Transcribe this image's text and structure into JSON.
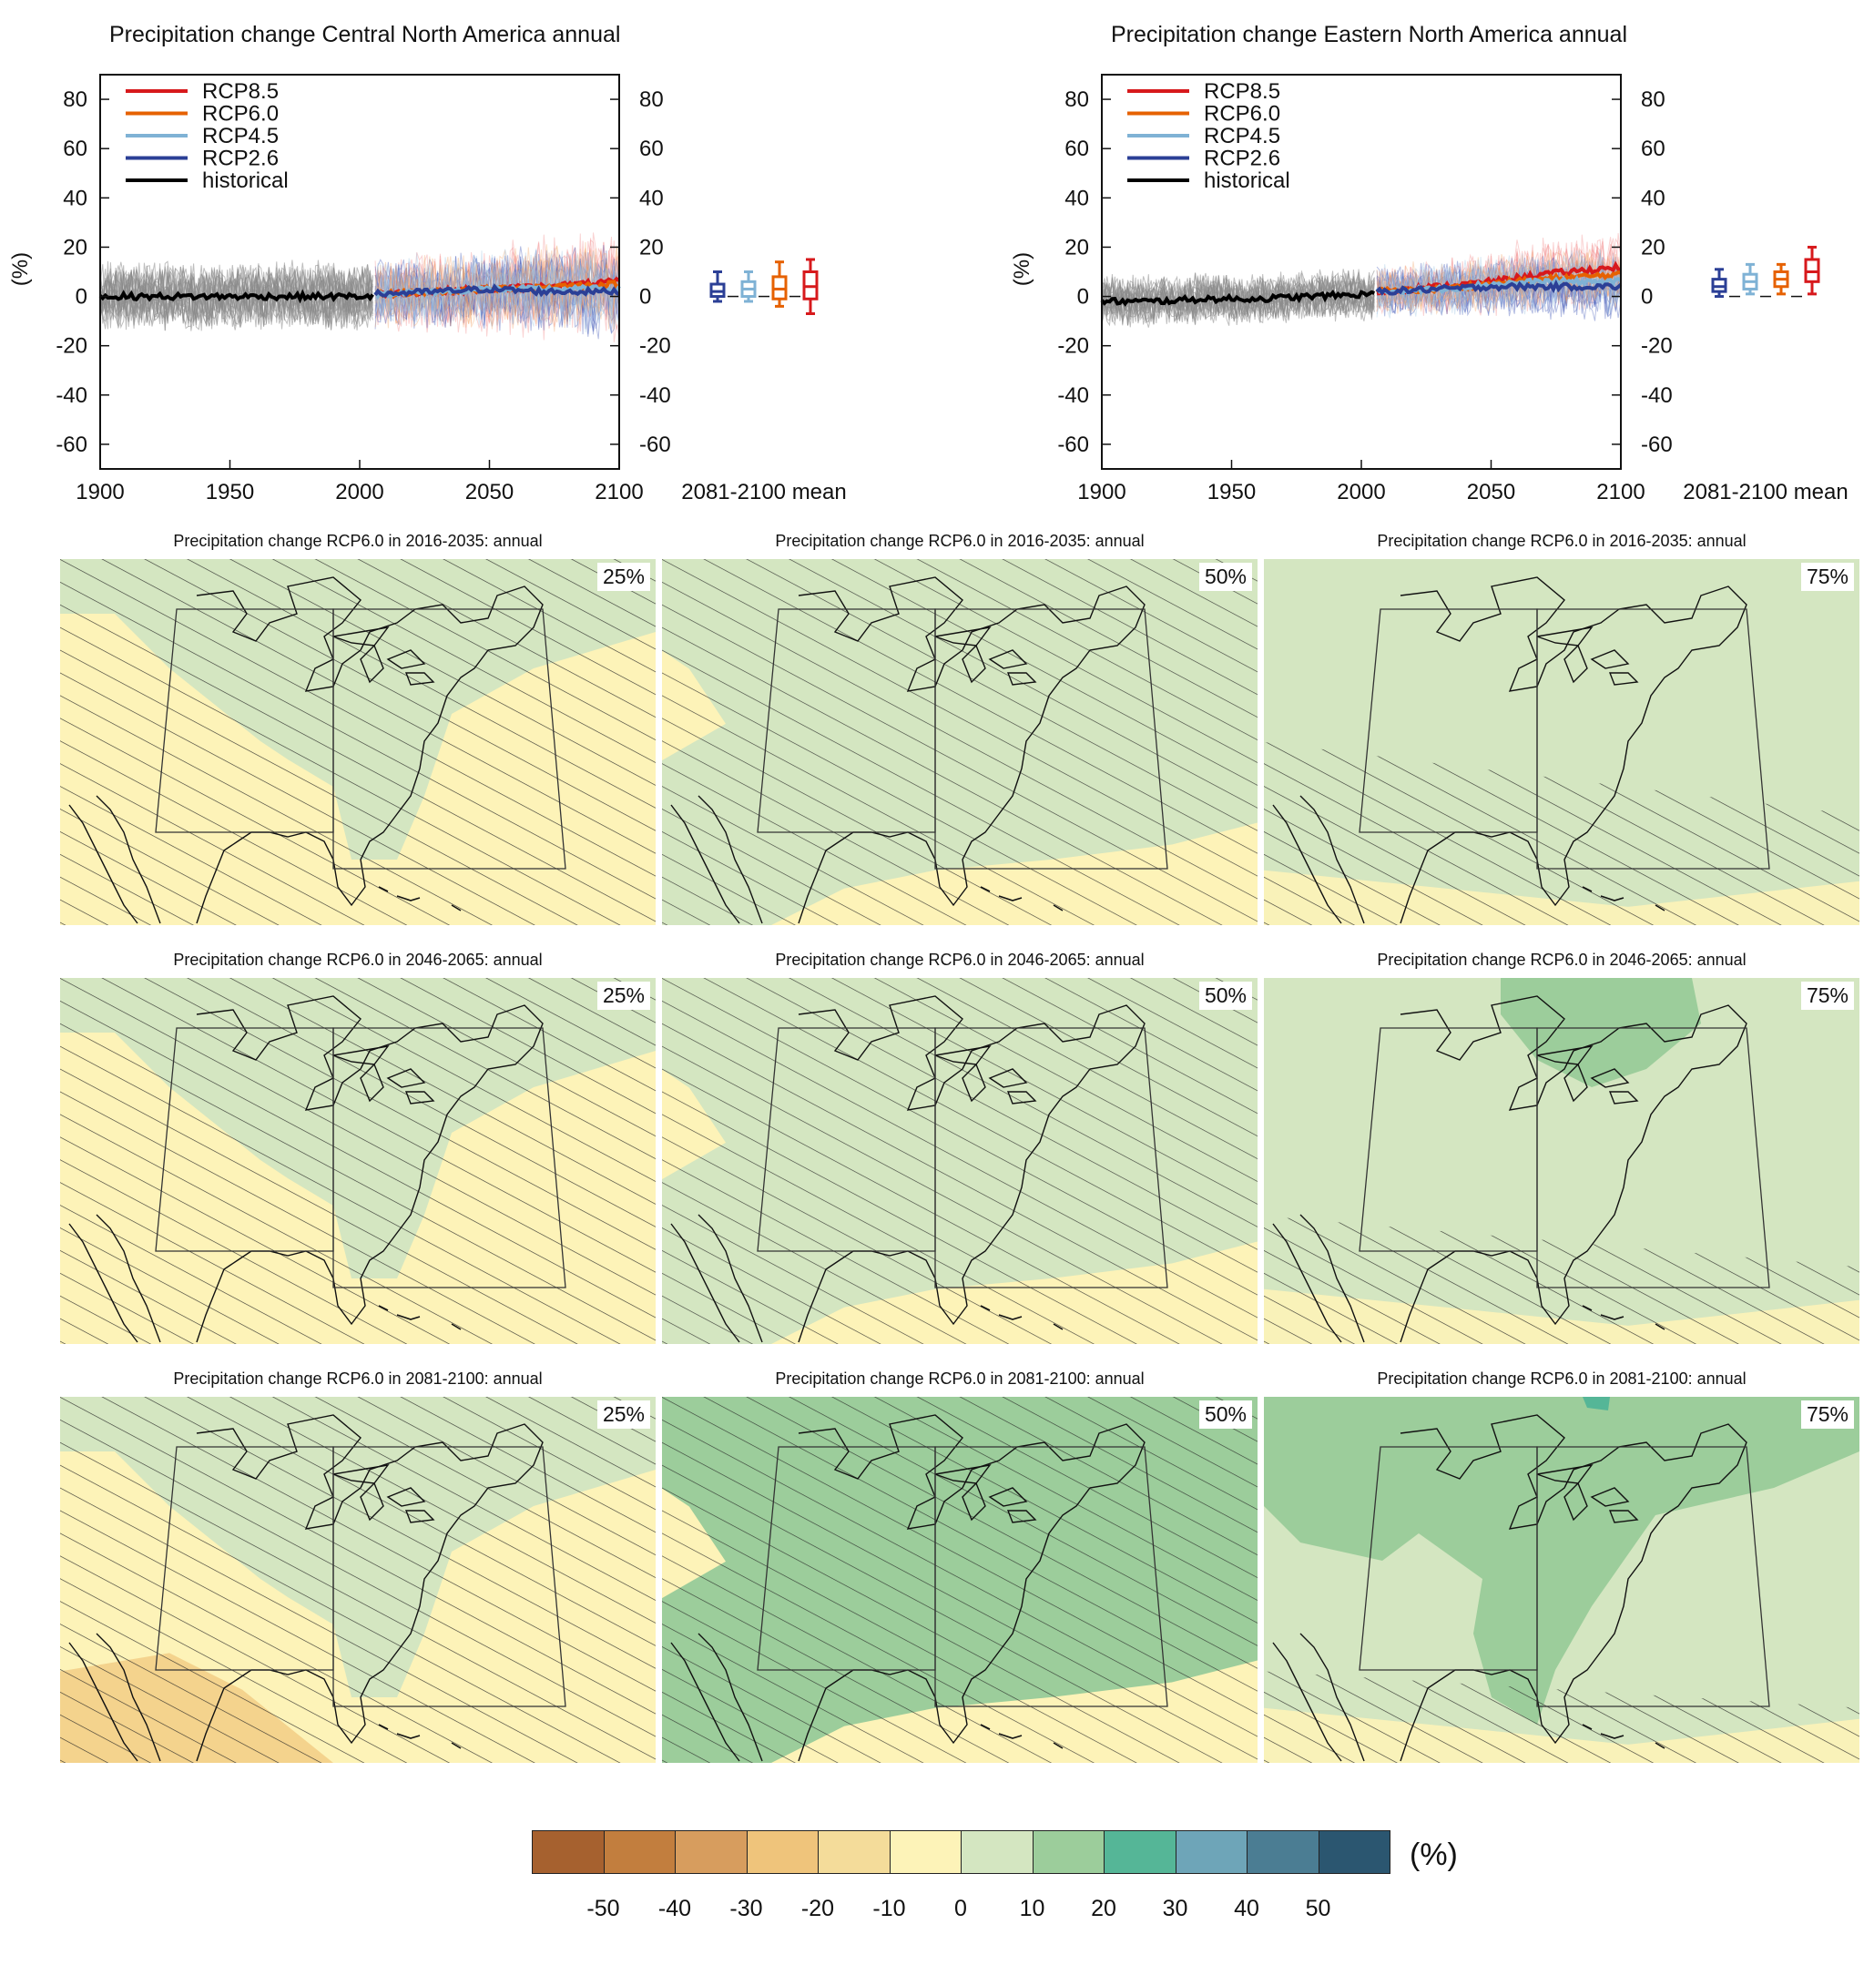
{
  "timeseries": [
    {
      "title": "Precipitation change Central North America annual",
      "ylabel": "(%)",
      "x_ticks": [
        "1900",
        "1950",
        "2000",
        "2050",
        "2100"
      ],
      "y_ticks": [
        "80",
        "60",
        "40",
        "20",
        "0",
        "-20",
        "-40",
        "-60"
      ],
      "mean_label": "2081-2100 mean"
    },
    {
      "title": "Precipitation change Eastern North America annual",
      "ylabel": "(%)",
      "x_ticks": [
        "1900",
        "1950",
        "2000",
        "2050",
        "2100"
      ],
      "y_ticks": [
        "80",
        "60",
        "40",
        "20",
        "0",
        "-20",
        "-40",
        "-60"
      ],
      "mean_label": "2081-2100 mean"
    }
  ],
  "legend": [
    {
      "label": "RCP8.5",
      "color": "#d7191c"
    },
    {
      "label": "RCP6.0",
      "color": "#e66101"
    },
    {
      "label": "RCP4.5",
      "color": "#7fb2d5"
    },
    {
      "label": "RCP2.6",
      "color": "#2b3f96"
    },
    {
      "label": "historical",
      "color": "#000000"
    }
  ],
  "maps": {
    "rows": [
      {
        "title": "Precipitation change RCP6.0 in 2016-2035: annual"
      },
      {
        "title": "Precipitation change RCP6.0 in 2046-2065: annual"
      },
      {
        "title": "Precipitation change RCP6.0 in 2081-2100: annual"
      }
    ],
    "percentiles": [
      "25%",
      "50%",
      "75%"
    ]
  },
  "colorbar": {
    "unit": "(%)",
    "labels": [
      "-50",
      "-40",
      "-30",
      "-20",
      "-10",
      "0",
      "10",
      "20",
      "30",
      "40",
      "50"
    ],
    "colors": [
      "#a6612f",
      "#c27e3e",
      "#d79d5e",
      "#efc47b",
      "#f4dc9a",
      "#fdf3b8",
      "#d4e6c1",
      "#9ccd9b",
      "#55b697",
      "#6ea5b8",
      "#4b7d93",
      "#2b5670"
    ]
  },
  "chart_data": [
    {
      "type": "line",
      "title": "Precipitation change Central North America annual",
      "xlabel": "",
      "ylabel": "(%)",
      "xlim": [
        1900,
        2100
      ],
      "ylim": [
        -70,
        90
      ],
      "grid": false,
      "legend": "top-left",
      "series": [
        {
          "name": "historical",
          "x": [
            1900,
            1920,
            1940,
            1960,
            1980,
            2005
          ],
          "values": [
            0,
            0,
            0,
            0,
            0,
            0
          ]
        },
        {
          "name": "RCP2.6",
          "x": [
            2006,
            2030,
            2050,
            2070,
            2100
          ],
          "values": [
            1,
            2,
            3,
            2,
            2
          ]
        },
        {
          "name": "RCP4.5",
          "x": [
            2006,
            2030,
            2050,
            2070,
            2100
          ],
          "values": [
            1,
            2,
            3,
            3,
            3
          ]
        },
        {
          "name": "RCP6.0",
          "x": [
            2006,
            2030,
            2050,
            2070,
            2100
          ],
          "values": [
            1,
            2,
            3,
            4,
            5
          ]
        },
        {
          "name": "RCP8.5",
          "x": [
            2006,
            2030,
            2050,
            2070,
            2100
          ],
          "values": [
            1,
            2,
            3,
            4,
            6
          ]
        }
      ],
      "mean_boxes": [
        {
          "name": "RCP2.6",
          "whisker": [
            -2,
            10
          ],
          "box": [
            0,
            5
          ],
          "median": 2
        },
        {
          "name": "RCP4.5",
          "whisker": [
            -2,
            10
          ],
          "box": [
            0,
            6
          ],
          "median": 3
        },
        {
          "name": "RCP6.0",
          "whisker": [
            -4,
            14
          ],
          "box": [
            -1,
            8
          ],
          "median": 3
        },
        {
          "name": "RCP8.5",
          "whisker": [
            -7,
            15
          ],
          "box": [
            -1,
            10
          ],
          "median": 4
        }
      ]
    },
    {
      "type": "line",
      "title": "Precipitation change Eastern North America annual",
      "xlabel": "",
      "ylabel": "(%)",
      "xlim": [
        1900,
        2100
      ],
      "ylim": [
        -70,
        90
      ],
      "grid": false,
      "legend": "top-left",
      "series": [
        {
          "name": "historical",
          "x": [
            1900,
            1920,
            1940,
            1960,
            1980,
            2005
          ],
          "values": [
            -2,
            -2,
            -1,
            -1,
            0,
            1
          ]
        },
        {
          "name": "RCP2.6",
          "x": [
            2006,
            2030,
            2050,
            2070,
            2100
          ],
          "values": [
            2,
            3,
            4,
            4,
            4
          ]
        },
        {
          "name": "RCP4.5",
          "x": [
            2006,
            2030,
            2050,
            2070,
            2100
          ],
          "values": [
            2,
            3,
            5,
            6,
            6
          ]
        },
        {
          "name": "RCP6.0",
          "x": [
            2006,
            2030,
            2050,
            2070,
            2100
          ],
          "values": [
            2,
            3,
            5,
            7,
            9
          ]
        },
        {
          "name": "RCP8.5",
          "x": [
            2006,
            2030,
            2050,
            2070,
            2100
          ],
          "values": [
            2,
            4,
            6,
            9,
            12
          ]
        }
      ],
      "mean_boxes": [
        {
          "name": "RCP2.6",
          "whisker": [
            0,
            11
          ],
          "box": [
            2,
            7
          ],
          "median": 4
        },
        {
          "name": "RCP4.5",
          "whisker": [
            1,
            13
          ],
          "box": [
            3,
            9
          ],
          "median": 6
        },
        {
          "name": "RCP6.0",
          "whisker": [
            1,
            13
          ],
          "box": [
            4,
            10
          ],
          "median": 7
        },
        {
          "name": "RCP8.5",
          "whisker": [
            1,
            20
          ],
          "box": [
            6,
            15
          ],
          "median": 10
        }
      ]
    }
  ]
}
